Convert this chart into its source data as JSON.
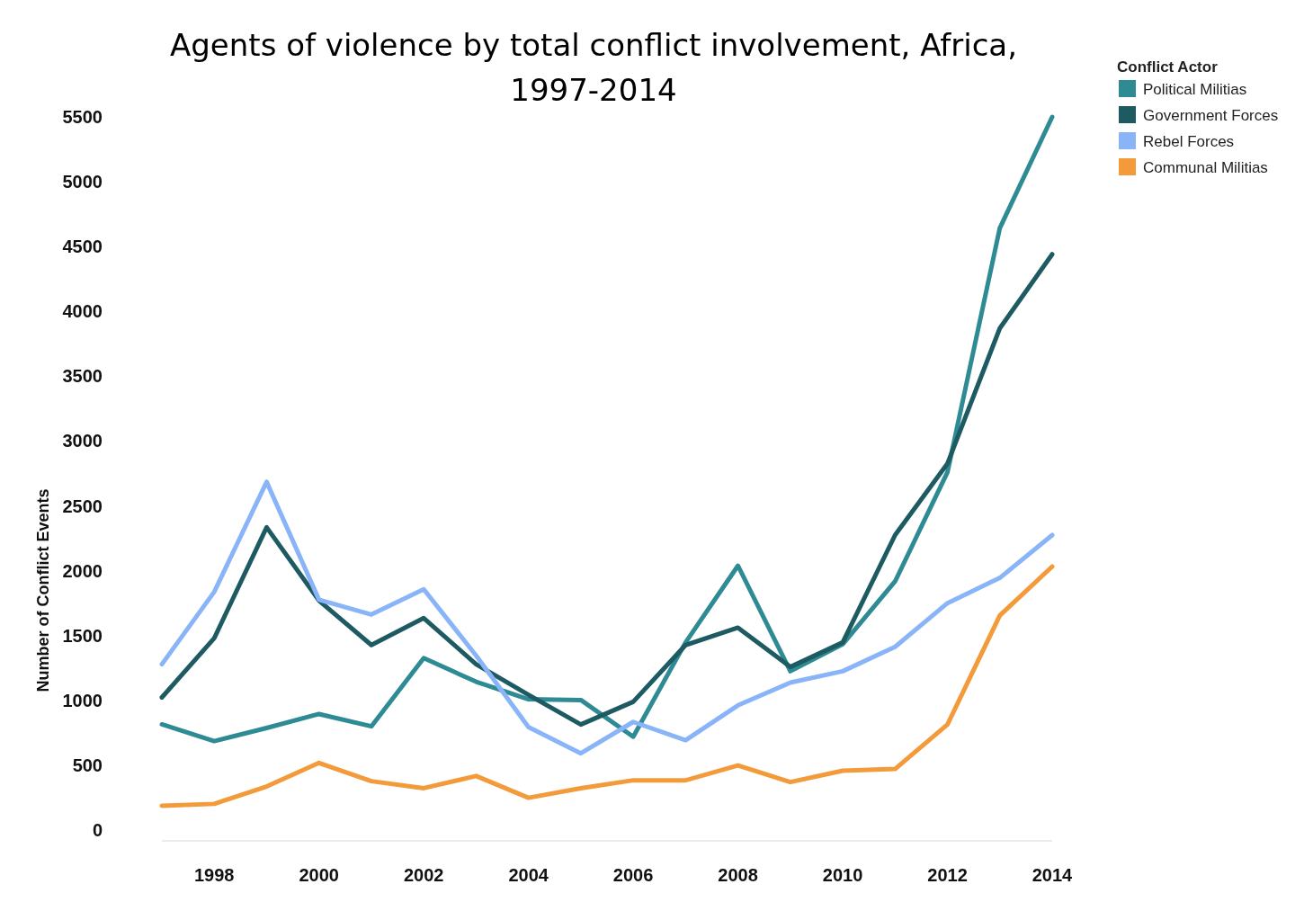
{
  "chart_data": {
    "type": "line",
    "title": "Agents of violence by total conflict involvement, Africa, 1997-2014",
    "ylabel": "Number of Conflict Events",
    "legend_title": "Conflict Actor",
    "legend": "top right",
    "x": [
      1997,
      1998,
      1999,
      2000,
      2001,
      2002,
      2003,
      2004,
      2005,
      2006,
      2007,
      2008,
      2009,
      2010,
      2011,
      2012,
      2013,
      2014
    ],
    "xlim": [
      1997,
      2014
    ],
    "xticks": [
      1998,
      2000,
      2002,
      2004,
      2006,
      2008,
      2010,
      2012,
      2014
    ],
    "ylim": [
      0,
      5500
    ],
    "yticks": [
      0,
      500,
      1000,
      1500,
      2000,
      2500,
      3000,
      3500,
      4000,
      4500,
      5000,
      5500
    ],
    "grid": false,
    "series": [
      {
        "name": "Political Militias",
        "color": "#2e8b94",
        "values": [
          815,
          686,
          787,
          895,
          800,
          1326,
          1144,
          1009,
          1003,
          720,
          1447,
          2039,
          1225,
          1433,
          1918,
          2759,
          4643,
          5500
        ]
      },
      {
        "name": "Government Forces",
        "color": "#1d5a61",
        "values": [
          1023,
          1480,
          2335,
          1770,
          1427,
          1635,
          1279,
          1043,
          814,
          989,
          1427,
          1561,
          1258,
          1447,
          2275,
          2826,
          3870,
          4441
        ]
      },
      {
        "name": "Rebel Forces",
        "color": "#8ab4f8",
        "values": [
          1279,
          1837,
          2685,
          1777,
          1662,
          1857,
          1346,
          794,
          592,
          834,
          693,
          962,
          1137,
          1225,
          1413,
          1750,
          1945,
          2275
        ]
      },
      {
        "name": "Communal Militias",
        "color": "#f39a3a",
        "values": [
          188,
          202,
          336,
          518,
          377,
          323,
          417,
          249,
          323,
          384,
          384,
          498,
          370,
          458,
          471,
          814,
          1655,
          2032
        ]
      }
    ]
  }
}
